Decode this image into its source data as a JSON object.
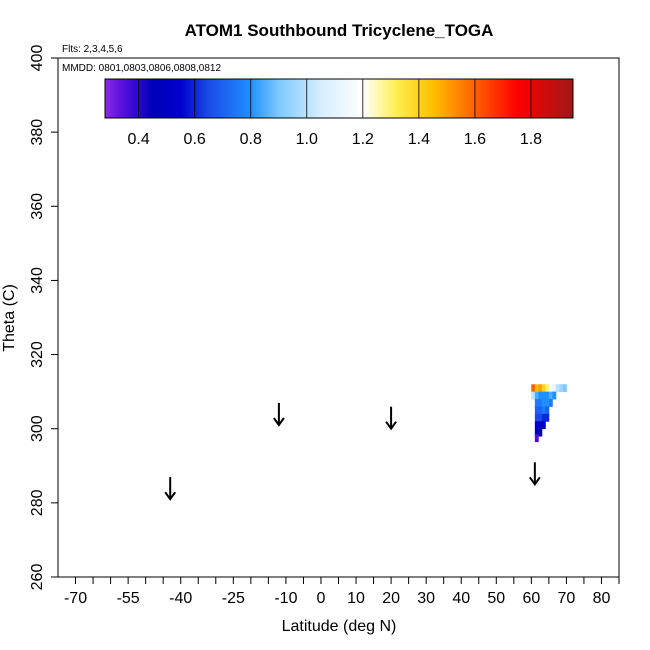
{
  "chart_data": {
    "type": "heatmap",
    "title": "ATOM1 Southbound Tricyclene_TOGA",
    "flights_note": "Flts: 2,3,4,5,6",
    "dates_note": "MMDD: 0801,0803,0806,0808,0812",
    "xlabel": "Latitude (deg N)",
    "ylabel": "Theta (C)",
    "xlim": [
      -75,
      85
    ],
    "ylim": [
      260,
      400
    ],
    "x_ticks": [
      -70,
      -55,
      -40,
      -25,
      -10,
      0,
      10,
      20,
      30,
      40,
      50,
      60,
      70,
      80
    ],
    "x_tick_labels": [
      "-70",
      "-55",
      "-40",
      "-25",
      "-10",
      "0",
      "10",
      "20",
      "30",
      "40",
      "50",
      "60",
      "70",
      "80"
    ],
    "x_minor_ticks": [
      -65,
      -60,
      -50,
      -45,
      -35,
      -30,
      -20,
      -15,
      -5,
      5,
      15,
      25,
      35,
      45,
      55,
      65,
      75,
      85
    ],
    "y_ticks": [
      260,
      280,
      300,
      320,
      340,
      360,
      380,
      400
    ],
    "y_tick_labels": [
      "260",
      "280",
      "300",
      "320",
      "340",
      "360",
      "380",
      "400"
    ],
    "colorbar": {
      "min": 0.28,
      "max": 1.95,
      "ticks": [
        0.4,
        0.6,
        0.8,
        1.0,
        1.2,
        1.4,
        1.6,
        1.8
      ],
      "tick_labels": [
        "0.4",
        "0.6",
        "0.8",
        "1.0",
        "1.2",
        "1.4",
        "1.6",
        "1.8"
      ],
      "segment_edges": [
        0.4,
        0.6,
        0.8,
        1.0,
        1.2,
        1.4,
        1.6,
        1.8
      ],
      "stops": [
        {
          "v": 0.28,
          "c": "#8a2be2"
        },
        {
          "v": 0.34,
          "c": "#5a10e0"
        },
        {
          "v": 0.45,
          "c": "#0000b8"
        },
        {
          "v": 0.55,
          "c": "#0000cd"
        },
        {
          "v": 0.65,
          "c": "#1a4be8"
        },
        {
          "v": 0.8,
          "c": "#1e90ff"
        },
        {
          "v": 0.9,
          "c": "#7ec8ff"
        },
        {
          "v": 1.05,
          "c": "#d6eeff"
        },
        {
          "v": 1.2,
          "c": "#ffffff"
        },
        {
          "v": 1.32,
          "c": "#ffee50"
        },
        {
          "v": 1.45,
          "c": "#ffc000"
        },
        {
          "v": 1.6,
          "c": "#ff6000"
        },
        {
          "v": 1.75,
          "c": "#ff0000"
        },
        {
          "v": 1.95,
          "c": "#a01818"
        }
      ]
    },
    "flight_arrows": [
      {
        "lat": -43,
        "theta": 281
      },
      {
        "lat": -12,
        "theta": 301
      },
      {
        "lat": 20,
        "theta": 300
      },
      {
        "lat": 61,
        "theta": 285
      }
    ],
    "cells": [
      {
        "lat": 60.5,
        "theta": 311,
        "value": 1.6
      },
      {
        "lat": 61.5,
        "theta": 311,
        "value": 1.45
      },
      {
        "lat": 62.5,
        "theta": 311,
        "value": 1.5
      },
      {
        "lat": 63.5,
        "theta": 311,
        "value": 1.4
      },
      {
        "lat": 64.5,
        "theta": 311,
        "value": 1.3
      },
      {
        "lat": 65.5,
        "theta": 311,
        "value": 1.2
      },
      {
        "lat": 66.5,
        "theta": 311,
        "value": 1.1
      },
      {
        "lat": 67.5,
        "theta": 311,
        "value": 1.0
      },
      {
        "lat": 68.5,
        "theta": 311,
        "value": 0.95
      },
      {
        "lat": 69.5,
        "theta": 311,
        "value": 0.9
      },
      {
        "lat": 60.5,
        "theta": 309,
        "value": 1.0
      },
      {
        "lat": 61.5,
        "theta": 309,
        "value": 0.85
      },
      {
        "lat": 62.5,
        "theta": 309,
        "value": 0.8
      },
      {
        "lat": 63.5,
        "theta": 309,
        "value": 0.8
      },
      {
        "lat": 64.5,
        "theta": 309,
        "value": 0.8
      },
      {
        "lat": 65.5,
        "theta": 309,
        "value": 0.85
      },
      {
        "lat": 66.5,
        "theta": 309,
        "value": 0.8
      },
      {
        "lat": 61.5,
        "theta": 307,
        "value": 0.75
      },
      {
        "lat": 62.5,
        "theta": 307,
        "value": 0.75
      },
      {
        "lat": 63.5,
        "theta": 307,
        "value": 0.8
      },
      {
        "lat": 64.5,
        "theta": 307,
        "value": 0.8
      },
      {
        "lat": 65.5,
        "theta": 307,
        "value": 0.75
      },
      {
        "lat": 61.5,
        "theta": 305,
        "value": 0.7
      },
      {
        "lat": 62.5,
        "theta": 305,
        "value": 0.7
      },
      {
        "lat": 63.5,
        "theta": 305,
        "value": 0.75
      },
      {
        "lat": 64.5,
        "theta": 305,
        "value": 0.7
      },
      {
        "lat": 61.5,
        "theta": 303,
        "value": 0.65
      },
      {
        "lat": 62.5,
        "theta": 303,
        "value": 0.65
      },
      {
        "lat": 63.5,
        "theta": 303,
        "value": 0.6
      },
      {
        "lat": 64.5,
        "theta": 303,
        "value": 0.6
      },
      {
        "lat": 61.5,
        "theta": 301,
        "value": 0.55
      },
      {
        "lat": 62.5,
        "theta": 301,
        "value": 0.5
      },
      {
        "lat": 63.5,
        "theta": 301,
        "value": 0.5
      },
      {
        "lat": 61.5,
        "theta": 299,
        "value": 0.5
      },
      {
        "lat": 62.5,
        "theta": 299,
        "value": 0.45
      },
      {
        "lat": 61.5,
        "theta": 297.5,
        "value": 0.35
      }
    ]
  }
}
